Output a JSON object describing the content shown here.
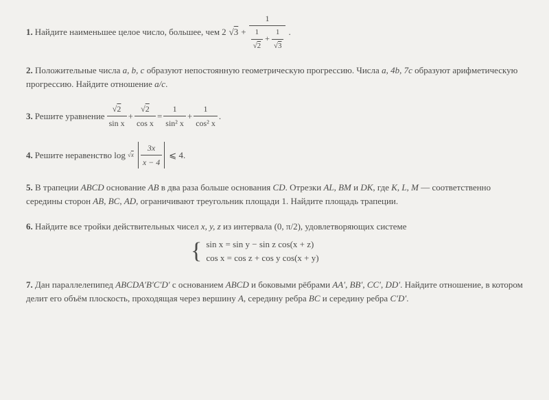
{
  "p1": {
    "num": "1.",
    "lead": "Найдите наименьшее целое число, большее, чем ",
    "t1": "2",
    "sq3": "3",
    "plus": " + ",
    "top1": "1",
    "b_top1": "1",
    "b_bot1": "2",
    "b_plus": " + ",
    "b_top2": "1",
    "b_bot2": "3",
    "dot": " ."
  },
  "p2": {
    "num": "2.",
    "text1": "Положительные числа ",
    "abc": "a, b, c",
    "text2": " образуют непостоянную геометрическую прогрессию. Числа ",
    "a": "a",
    "comma": ", ",
    "b4": "4b",
    "c7": "7c",
    "text3": " образуют арифметическую прогрессию. Найдите отношение ",
    "ac": "a/c",
    "dot": "."
  },
  "p3": {
    "num": "3.",
    "lead": "Решите уравнение ",
    "sq2a": "2",
    "sinx": "sin x",
    "plus1": " + ",
    "sq2b": "2",
    "cosx": "cos x",
    "eq": " = ",
    "one1": "1",
    "sin2x": "sin² x",
    "plus2": " + ",
    "one2": "1",
    "cos2x": "cos² x",
    "dot": " ."
  },
  "p4": {
    "num": "4.",
    "lead": "Решите неравенство log",
    "base_sq": "x",
    "t3x": "3x",
    "xm4": "x − 4",
    "le": " ⩽ 4."
  },
  "p5": {
    "num": "5.",
    "t1": "В трапеции ",
    "abcd": "ABCD",
    "t2": " основание ",
    "ab": "AB",
    "t3": " в два раза больше основания ",
    "cd": "CD",
    "t4": ". Отрезки ",
    "al": "AL",
    "c1": ", ",
    "bm": "BM",
    "t5": " и ",
    "dk": "DK",
    "t6": ", где ",
    "klm": "K, L, M",
    "t7": " — соответственно середины сторон ",
    "ab2": "AB",
    "c2": ", ",
    "bc": "BC",
    "c3": ", ",
    "ad": "AD",
    "t8": ", ограничивают треугольник площади 1. Найдите площадь трапеции."
  },
  "p6": {
    "num": "6.",
    "t1": "Найдите все тройки действительных чисел ",
    "xyz": "x, y, z",
    "t2": " из интервала ",
    "int": "(0, π/2)",
    "t3": ", удовлетворяющих системе",
    "line1": "sin x = sin y − sin z cos(x + z)",
    "line2": "cos x = cos z + cos y cos(x + y)"
  },
  "p7": {
    "num": "7.",
    "t1": "Дан параллелепипед ",
    "pp": "ABCDA′B′C′D′",
    "t2": " с основанием ",
    "abcd": "ABCD",
    "t3": " и боковыми рёбрами ",
    "aa": "AA′",
    "c1": ", ",
    "bb": "BB′",
    "c2": ", ",
    "cc": "CC′",
    "c3": ", ",
    "dd": "DD′",
    "t4": ". Найдите отношение, в котором делит его объём плоскость, проходящая через вершину ",
    "a": "A",
    "t5": ", середину ребра ",
    "bc": "BC",
    "t6": " и середину ребра ",
    "cd": "C′D′",
    "dot": "."
  }
}
